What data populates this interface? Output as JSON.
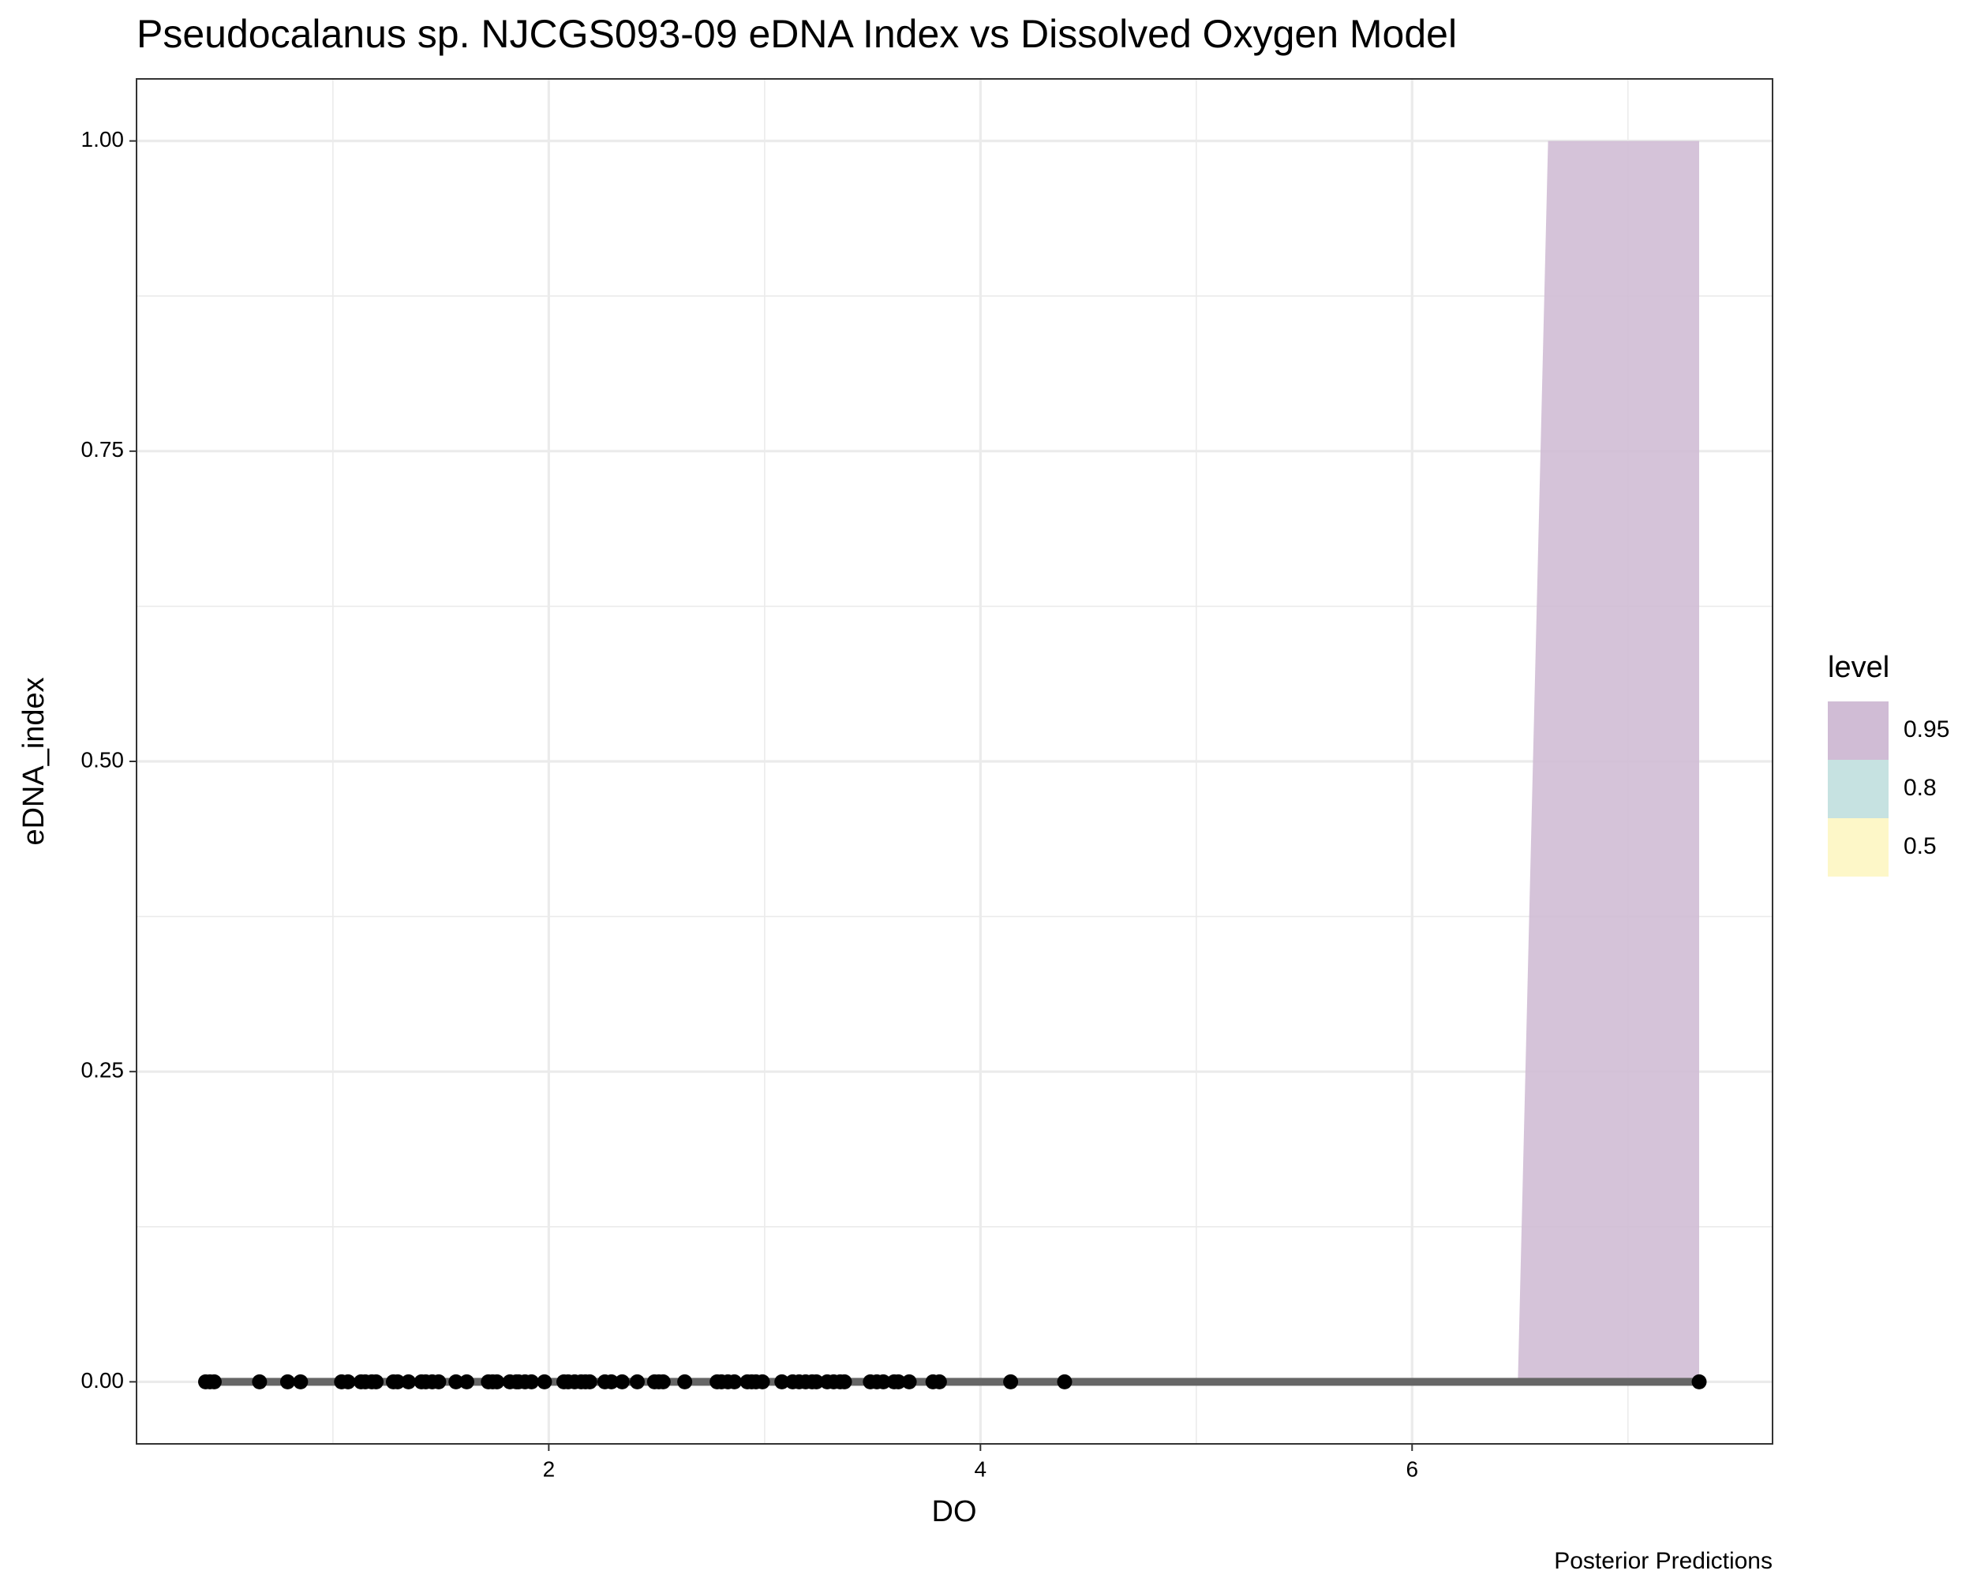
{
  "chart_data": {
    "type": "line",
    "title": "Pseudocalanus sp. NJCGS093-09 eDNA Index vs Dissolved Oxygen Model",
    "xlabel": "DO",
    "ylabel": "eDNA_index",
    "caption": "Posterior Predictions",
    "xlim": [
      0.09,
      7.67
    ],
    "ylim": [
      -0.05,
      1.05
    ],
    "xticks": [
      2,
      4,
      6
    ],
    "yticks": [
      {
        "value": 0,
        "label": "0.00"
      },
      {
        "value": 0.25,
        "label": "0.25"
      },
      {
        "value": 0.5,
        "label": "0.50"
      },
      {
        "value": 0.75,
        "label": "0.75"
      },
      {
        "value": 1,
        "label": "1.00"
      }
    ],
    "x_minor_grid": [
      1,
      3,
      5,
      7
    ],
    "y_minor_grid": [
      0.125,
      0.375,
      0.625,
      0.875
    ],
    "grid": true,
    "legend_title": "level",
    "legend_position": "right",
    "ribbons": [
      {
        "name": "0.95",
        "color": "#d0bcd5",
        "x": [
          6.49,
          6.63,
          7.33
        ],
        "ymin": [
          0,
          0,
          0
        ],
        "ymax": [
          0,
          1,
          1
        ]
      },
      {
        "name": "0.8",
        "color": "#c6e2e1"
      },
      {
        "name": "0.5",
        "color": "#fdf7c8"
      }
    ],
    "line": {
      "color": "#666666",
      "x": [
        0.41,
        7.33
      ],
      "y": [
        0,
        0
      ]
    },
    "points": {
      "color": "#000000",
      "x": [
        0.41,
        0.43,
        0.45,
        0.66,
        0.79,
        0.85,
        1.04,
        1.07,
        1.13,
        1.15,
        1.18,
        1.2,
        1.28,
        1.3,
        1.35,
        1.41,
        1.43,
        1.46,
        1.49,
        1.57,
        1.62,
        1.72,
        1.74,
        1.76,
        1.82,
        1.85,
        1.86,
        1.89,
        1.92,
        1.98,
        2.07,
        2.09,
        2.12,
        2.15,
        2.17,
        2.19,
        2.26,
        2.29,
        2.34,
        2.41,
        2.49,
        2.51,
        2.53,
        2.63,
        2.78,
        2.8,
        2.83,
        2.86,
        2.92,
        2.94,
        2.96,
        2.99,
        3.08,
        3.13,
        3.16,
        3.19,
        3.22,
        3.24,
        3.29,
        3.32,
        3.35,
        3.37,
        3.49,
        3.52,
        3.55,
        3.6,
        3.62,
        3.67,
        3.78,
        3.81,
        4.14,
        4.39,
        7.33
      ],
      "y": [
        0,
        0,
        0,
        0,
        0,
        0,
        0,
        0,
        0,
        0,
        0,
        0,
        0,
        0,
        0,
        0,
        0,
        0,
        0,
        0,
        0,
        0,
        0,
        0,
        0,
        0,
        0,
        0,
        0,
        0,
        0,
        0,
        0,
        0,
        0,
        0,
        0,
        0,
        0,
        0,
        0,
        0,
        0,
        0,
        0,
        0,
        0,
        0,
        0,
        0,
        0,
        0,
        0,
        0,
        0,
        0,
        0,
        0,
        0,
        0,
        0,
        0,
        0,
        0,
        0,
        0,
        0,
        0,
        0,
        0,
        0,
        0,
        0
      ]
    }
  }
}
